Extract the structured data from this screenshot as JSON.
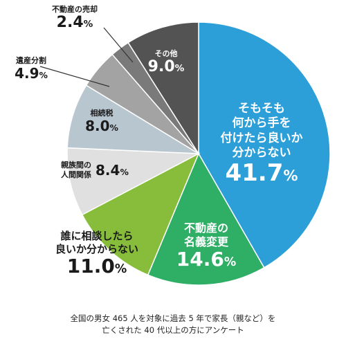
{
  "chart_data": {
    "type": "pie",
    "unit": "%",
    "slices": [
      {
        "label": "そもそも何から手を付けたら良いか分からない",
        "lines": [
          "そもそも",
          "何から手を",
          "付けたら良いか",
          "分からない"
        ],
        "value": 41.7,
        "color": "#2d9fd8"
      },
      {
        "label": "不動産の名義変更",
        "lines": [
          "不動産の",
          "名義変更"
        ],
        "value": 14.6,
        "color": "#2fae66"
      },
      {
        "label": "誰に相談したら良いか分からない",
        "lines": [
          "誰に相談したら",
          "良いか分からない"
        ],
        "value": 11.0,
        "color": "#87bd3a"
      },
      {
        "label": "親族間の人間関係",
        "lines": [
          "親族間の",
          "人間関係"
        ],
        "value": 8.4,
        "color": "#e0e0e0"
      },
      {
        "label": "相続税",
        "lines": [
          "相続税"
        ],
        "value": 8.0,
        "color": "#b8c6d0"
      },
      {
        "label": "遺産分割",
        "lines": [
          "遺産分割"
        ],
        "value": 4.9,
        "color": "#a3a3a3"
      },
      {
        "label": "不動産の売却",
        "lines": [
          "不動産の売却"
        ],
        "value": 2.4,
        "color": "#7a7a7a"
      },
      {
        "label": "その他",
        "lines": [
          "その他"
        ],
        "value": 9.0,
        "color": "#545354"
      }
    ]
  },
  "footnote": {
    "line1": "全国の男女 465 人を対象に過去 5 年で家長（親など）を",
    "line2": "亡くされた 40 代以上の方にアンケート"
  }
}
